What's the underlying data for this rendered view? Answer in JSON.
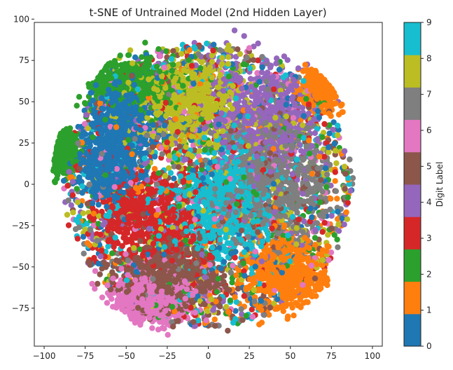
{
  "chart_data": {
    "type": "scatter",
    "title": "t-SNE of Untrained Model (2nd Hidden Layer)",
    "xlabel": "",
    "ylabel": "",
    "xlim": [
      -106,
      106
    ],
    "ylim": [
      -98,
      98
    ],
    "xticks": [
      -100,
      -75,
      -50,
      -25,
      0,
      25,
      50,
      75,
      100
    ],
    "yticks": [
      -75,
      -50,
      -25,
      0,
      25,
      50,
      75,
      100
    ],
    "colorbar": {
      "label": "Digit Label",
      "ticks": [
        0,
        1,
        2,
        3,
        4,
        5,
        6,
        7,
        8,
        9
      ],
      "colors": [
        "#1f77b4",
        "#ff7f0e",
        "#2ca02c",
        "#d62728",
        "#9467bd",
        "#8c564b",
        "#e377c2",
        "#7f7f7f",
        "#bcbd22",
        "#17becf"
      ]
    },
    "clusters": [
      {
        "digit": 0,
        "center": [
          -52,
          40
        ],
        "spread": [
          18,
          22
        ]
      },
      {
        "digit": 0,
        "center": [
          -60,
          10
        ],
        "spread": [
          14,
          14
        ]
      },
      {
        "digit": 1,
        "center": [
          48,
          -55
        ],
        "spread": [
          20,
          18
        ]
      },
      {
        "digit": 1,
        "center": [
          70,
          60
        ],
        "spread": [
          10,
          10
        ]
      },
      {
        "digit": 2,
        "center": [
          -48,
          62
        ],
        "spread": [
          22,
          12
        ]
      },
      {
        "digit": 2,
        "center": [
          -90,
          20
        ],
        "spread": [
          8,
          10
        ]
      },
      {
        "digit": 3,
        "center": [
          -35,
          -20
        ],
        "spread": [
          28,
          24
        ]
      },
      {
        "digit": 4,
        "center": [
          35,
          40
        ],
        "spread": [
          26,
          28
        ]
      },
      {
        "digit": 5,
        "center": [
          -20,
          -55
        ],
        "spread": [
          28,
          18
        ]
      },
      {
        "digit": 6,
        "center": [
          -35,
          -70
        ],
        "spread": [
          22,
          12
        ]
      },
      {
        "digit": 7,
        "center": [
          40,
          0
        ],
        "spread": [
          28,
          30
        ]
      },
      {
        "digit": 8,
        "center": [
          -10,
          50
        ],
        "spread": [
          26,
          22
        ]
      },
      {
        "digit": 9,
        "center": [
          10,
          -10
        ],
        "spread": [
          26,
          30
        ]
      }
    ]
  }
}
